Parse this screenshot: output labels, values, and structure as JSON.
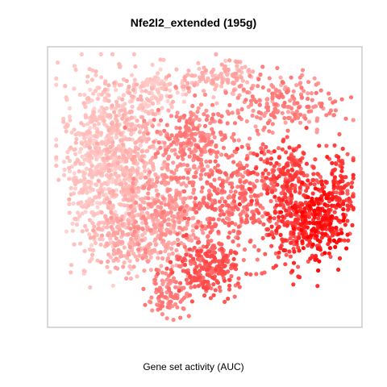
{
  "chart_data": {
    "type": "scatter",
    "title": "Nfe2l2_extended (195g)",
    "xlabel": "Gene set activity (AUC)",
    "ylabel": "",
    "colors": {
      "low": "#ffe4e1",
      "high": "#ff0000",
      "frame": "#b3b3b3"
    },
    "grid": false,
    "color_scale": "white-to-red by AUC",
    "seed": 1337,
    "series": [
      {
        "cx": 0.14,
        "cy": 0.58,
        "sx": 0.055,
        "sy": 0.17,
        "n": 500,
        "auc": [
          0.06,
          0.18
        ]
      },
      {
        "cx": 0.25,
        "cy": 0.62,
        "sx": 0.06,
        "sy": 0.15,
        "n": 420,
        "auc": [
          0.08,
          0.25
        ]
      },
      {
        "cx": 0.33,
        "cy": 0.86,
        "sx": 0.05,
        "sy": 0.04,
        "n": 90,
        "auc": [
          0.06,
          0.15
        ]
      },
      {
        "cx": 0.55,
        "cy": 0.9,
        "sx": 0.08,
        "sy": 0.035,
        "n": 130,
        "auc": [
          0.12,
          0.3
        ]
      },
      {
        "cx": 0.75,
        "cy": 0.81,
        "sx": 0.09,
        "sy": 0.05,
        "n": 200,
        "auc": [
          0.25,
          0.5
        ]
      },
      {
        "cx": 0.47,
        "cy": 0.68,
        "sx": 0.07,
        "sy": 0.07,
        "n": 260,
        "auc": [
          0.28,
          0.5
        ]
      },
      {
        "cx": 0.37,
        "cy": 0.4,
        "sx": 0.07,
        "sy": 0.1,
        "n": 330,
        "auc": [
          0.2,
          0.4
        ]
      },
      {
        "cx": 0.25,
        "cy": 0.3,
        "sx": 0.06,
        "sy": 0.06,
        "n": 200,
        "auc": [
          0.12,
          0.3
        ]
      },
      {
        "cx": 0.58,
        "cy": 0.45,
        "sx": 0.08,
        "sy": 0.09,
        "n": 320,
        "auc": [
          0.35,
          0.6
        ]
      },
      {
        "cx": 0.77,
        "cy": 0.55,
        "sx": 0.06,
        "sy": 0.06,
        "n": 190,
        "auc": [
          0.5,
          0.78
        ]
      },
      {
        "cx": 0.88,
        "cy": 0.38,
        "sx": 0.05,
        "sy": 0.07,
        "n": 240,
        "auc": [
          0.72,
          1.0
        ]
      },
      {
        "cx": 0.8,
        "cy": 0.36,
        "sx": 0.06,
        "sy": 0.08,
        "n": 220,
        "auc": [
          0.55,
          0.85
        ]
      },
      {
        "cx": 0.52,
        "cy": 0.2,
        "sx": 0.06,
        "sy": 0.05,
        "n": 240,
        "auc": [
          0.45,
          0.7
        ]
      },
      {
        "cx": 0.38,
        "cy": 0.1,
        "sx": 0.04,
        "sy": 0.04,
        "n": 90,
        "auc": [
          0.3,
          0.5
        ]
      },
      {
        "cx": 0.95,
        "cy": 0.52,
        "sx": 0.025,
        "sy": 0.06,
        "n": 80,
        "auc": [
          0.55,
          0.85
        ]
      }
    ]
  }
}
